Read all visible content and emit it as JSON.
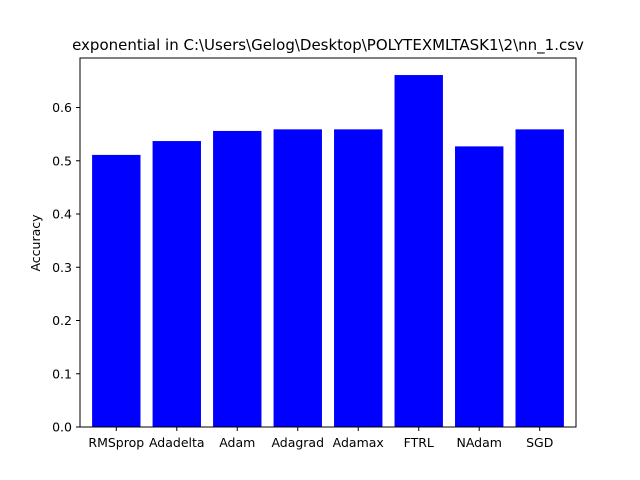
{
  "chart_data": {
    "type": "bar",
    "title": "exponential in C:\\Users\\Gelog\\Desktop\\POLYTEXMLTASK1\\2\\nn_1.csv",
    "xlabel": "",
    "ylabel": "Accuracy",
    "categories": [
      "RMSprop",
      "Adadelta",
      "Adam",
      "Adagrad",
      "Adamax",
      "FTRL",
      "NAdam",
      "SGD"
    ],
    "values": [
      0.511,
      0.537,
      0.556,
      0.559,
      0.559,
      0.661,
      0.527,
      0.559
    ],
    "ylim": [
      0,
      0.693
    ],
    "yticks": [
      0.0,
      0.1,
      0.2,
      0.3,
      0.4,
      0.5,
      0.6
    ],
    "ytick_labels": [
      "0.0",
      "0.1",
      "0.2",
      "0.3",
      "0.4",
      "0.5",
      "0.6"
    ],
    "bar_color": "#0000ff",
    "grid": false,
    "legend": null
  }
}
